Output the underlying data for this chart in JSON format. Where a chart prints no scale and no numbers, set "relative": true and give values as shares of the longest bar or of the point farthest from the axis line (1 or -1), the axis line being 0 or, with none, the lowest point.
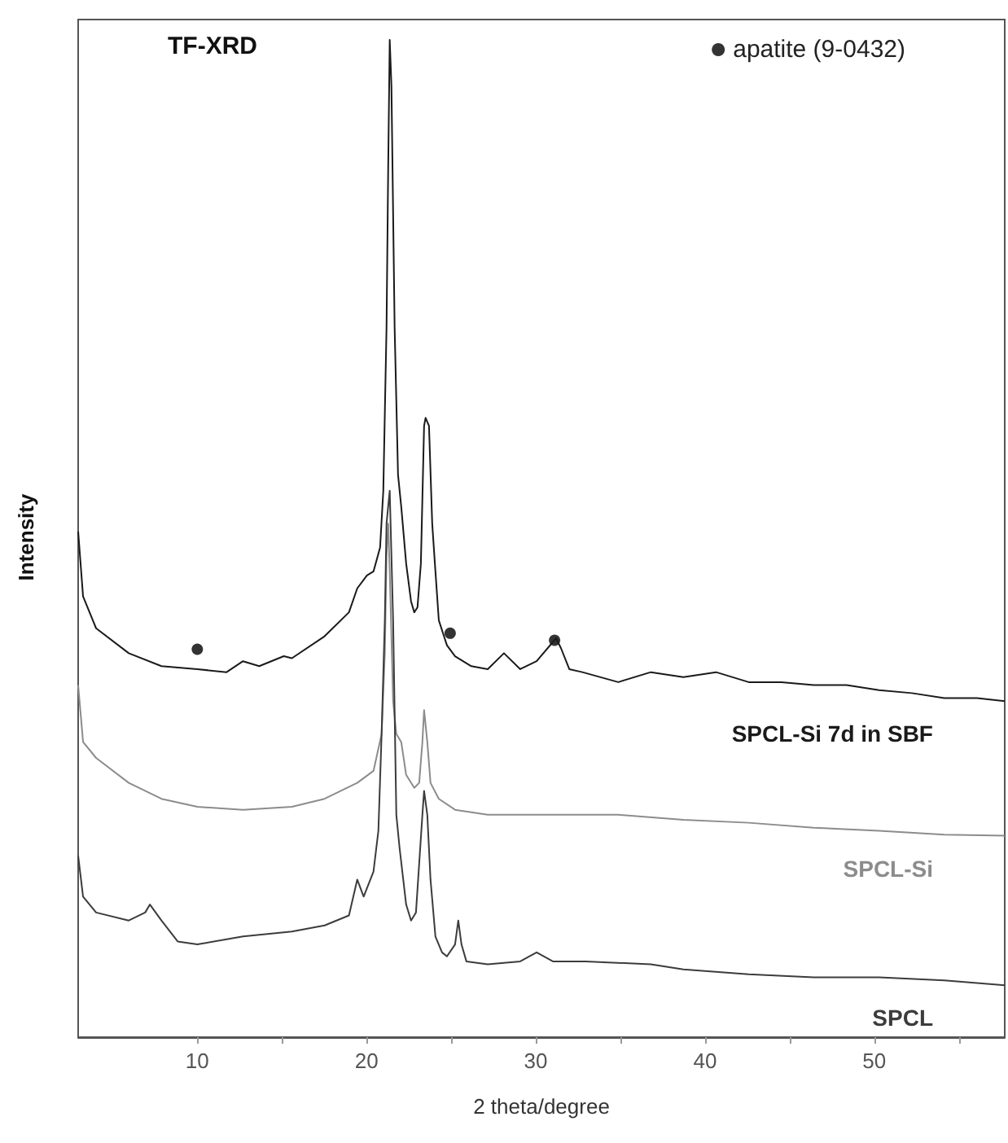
{
  "chart_data": {
    "type": "line",
    "title": "TF-XRD",
    "xlabel": "2 theta/degree",
    "ylabel": "Intensity",
    "relative": true,
    "legend": "top right",
    "grid": false,
    "xlim": [
      2.96,
      57.71
    ],
    "xticks": [
      10,
      {
        "value": 15,
        "label": null
      },
      20,
      {
        "value": 25,
        "label": null
      },
      30,
      {
        "value": 35,
        "label": null
      },
      40,
      {
        "value": 45,
        "label": null
      },
      50,
      {
        "value": 55,
        "label": null
      }
    ],
    "series": [
      {
        "name": "SPCL-Si 7d in SBF",
        "color": "#1a1a1a",
        "x": [
          2.96,
          3.25,
          4.02,
          5.95,
          7.88,
          10,
          11.73,
          12.7,
          13.66,
          15.11,
          15.59,
          17.52,
          18.96,
          19.45,
          20.02,
          20.41,
          20.8,
          20.99,
          21.18,
          21.28,
          21.37,
          21.47,
          21.66,
          21.86,
          22.05,
          22.34,
          22.63,
          22.82,
          23.01,
          23.21,
          23.4,
          23.49,
          23.69,
          23.88,
          24.07,
          24.27,
          24.75,
          25.23,
          26.19,
          27.16,
          28.12,
          29.08,
          30.05,
          31.2,
          31.49,
          31.98,
          32.75,
          34.87,
          36.8,
          38.72,
          40.65,
          42.58,
          44.51,
          46.43,
          48.36,
          50.29,
          52.22,
          54.14,
          56.07,
          57.71
        ],
        "values": [
          0.507,
          0.442,
          0.41,
          0.385,
          0.372,
          0.369,
          0.366,
          0.377,
          0.372,
          0.382,
          0.38,
          0.402,
          0.426,
          0.45,
          0.463,
          0.467,
          0.491,
          0.548,
          0.711,
          0.873,
          1,
          0.954,
          0.711,
          0.564,
          0.532,
          0.475,
          0.437,
          0.426,
          0.431,
          0.475,
          0.613,
          0.621,
          0.613,
          0.515,
          0.467,
          0.418,
          0.393,
          0.382,
          0.372,
          0.369,
          0.385,
          0.369,
          0.377,
          0.4,
          0.39,
          0.369,
          0.366,
          0.356,
          0.366,
          0.361,
          0.366,
          0.356,
          0.356,
          0.353,
          0.353,
          0.348,
          0.345,
          0.34,
          0.34,
          0.337
        ]
      },
      {
        "name": "SPCL-Si",
        "color": "#8c8c8c",
        "x": [
          2.96,
          3.25,
          4.02,
          5.95,
          7.88,
          10,
          12.7,
          15.59,
          17.52,
          19.45,
          20.41,
          20.89,
          21.08,
          21.18,
          21.28,
          21.37,
          21.57,
          21.76,
          22.05,
          22.34,
          22.82,
          23.11,
          23.3,
          23.4,
          23.59,
          23.78,
          24.27,
          25.23,
          27.16,
          31.01,
          34.87,
          38.72,
          42.58,
          46.43,
          50.29,
          54.14,
          57.71
        ],
        "values": [
          0.353,
          0.296,
          0.28,
          0.255,
          0.239,
          0.231,
          0.228,
          0.231,
          0.239,
          0.255,
          0.267,
          0.304,
          0.385,
          0.483,
          0.515,
          0.467,
          0.337,
          0.304,
          0.296,
          0.263,
          0.25,
          0.255,
          0.296,
          0.328,
          0.296,
          0.255,
          0.239,
          0.228,
          0.223,
          0.223,
          0.223,
          0.218,
          0.215,
          0.21,
          0.207,
          0.203,
          0.202
        ]
      },
      {
        "name": "SPCL",
        "color": "#3c3c3c",
        "x": [
          2.96,
          3.25,
          4.02,
          5.95,
          6.92,
          7.2,
          7.88,
          8.84,
          10,
          12.7,
          15.59,
          17.52,
          18.96,
          19.45,
          19.83,
          20.41,
          20.7,
          20.89,
          21.08,
          21.18,
          21.37,
          21.57,
          21.76,
          21.95,
          22.34,
          22.63,
          22.92,
          23.11,
          23.3,
          23.4,
          23.59,
          23.78,
          24.07,
          24.46,
          24.75,
          25.23,
          25.42,
          25.61,
          25.9,
          27.16,
          29.08,
          30.05,
          31.01,
          32.94,
          36.8,
          38.72,
          42.58,
          46.43,
          50.29,
          54.14,
          57.71
        ],
        "values": [
          0.182,
          0.141,
          0.125,
          0.117,
          0.125,
          0.133,
          0.117,
          0.096,
          0.093,
          0.101,
          0.106,
          0.112,
          0.122,
          0.158,
          0.141,
          0.166,
          0.207,
          0.304,
          0.418,
          0.515,
          0.548,
          0.418,
          0.223,
          0.19,
          0.133,
          0.117,
          0.125,
          0.174,
          0.223,
          0.247,
          0.223,
          0.158,
          0.101,
          0.085,
          0.081,
          0.093,
          0.117,
          0.093,
          0.076,
          0.073,
          0.076,
          0.085,
          0.076,
          0.076,
          0.073,
          0.068,
          0.063,
          0.06,
          0.06,
          0.057,
          0.052
        ]
      },
      {
        "name": "apatite (9-0432)",
        "type": "scatter",
        "marker": "circle",
        "color": "#000000",
        "x": [
          10,
          24.94,
          31.11
        ],
        "values": [
          0.389,
          0.405,
          0.398
        ]
      }
    ]
  }
}
